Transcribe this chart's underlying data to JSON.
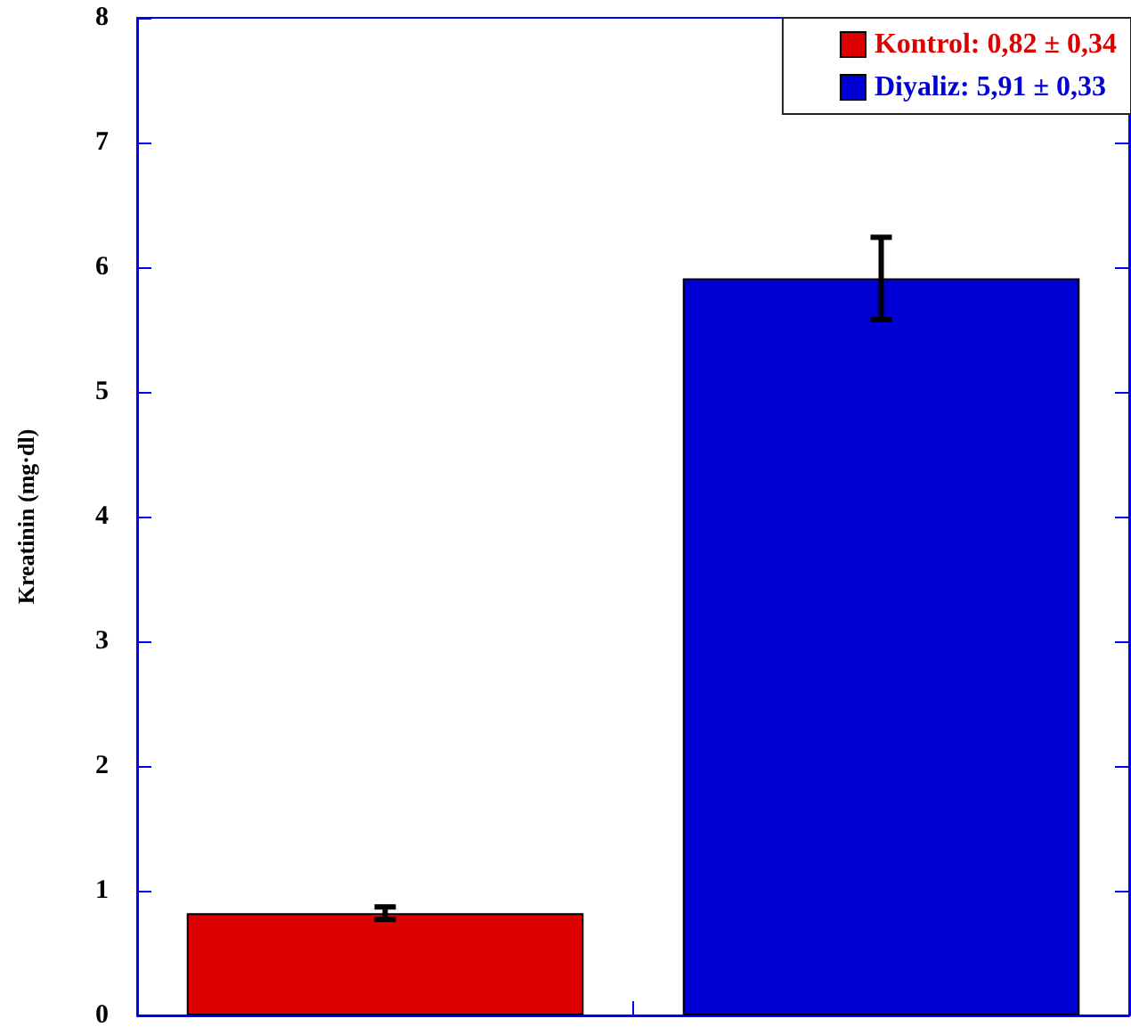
{
  "chart_data": {
    "type": "bar",
    "ylabel": "Kreatinin (mg·dl)",
    "categories": [
      null,
      null
    ],
    "series": [
      {
        "name": "Kontrol: 0,82 ± 0,34",
        "color": "#dd0000",
        "values": [
          0.82,
          null
        ],
        "errors": [
          0.05,
          null
        ]
      },
      {
        "name": "Diyaliz: 5,91 ± 0,33",
        "color": "#0000d4",
        "values": [
          null,
          5.91
        ],
        "errors": [
          null,
          0.33
        ]
      }
    ],
    "ylim": [
      0,
      8
    ],
    "yticks": [
      0,
      1,
      2,
      3,
      4,
      5,
      6,
      7,
      8
    ],
    "legend": "top right"
  }
}
